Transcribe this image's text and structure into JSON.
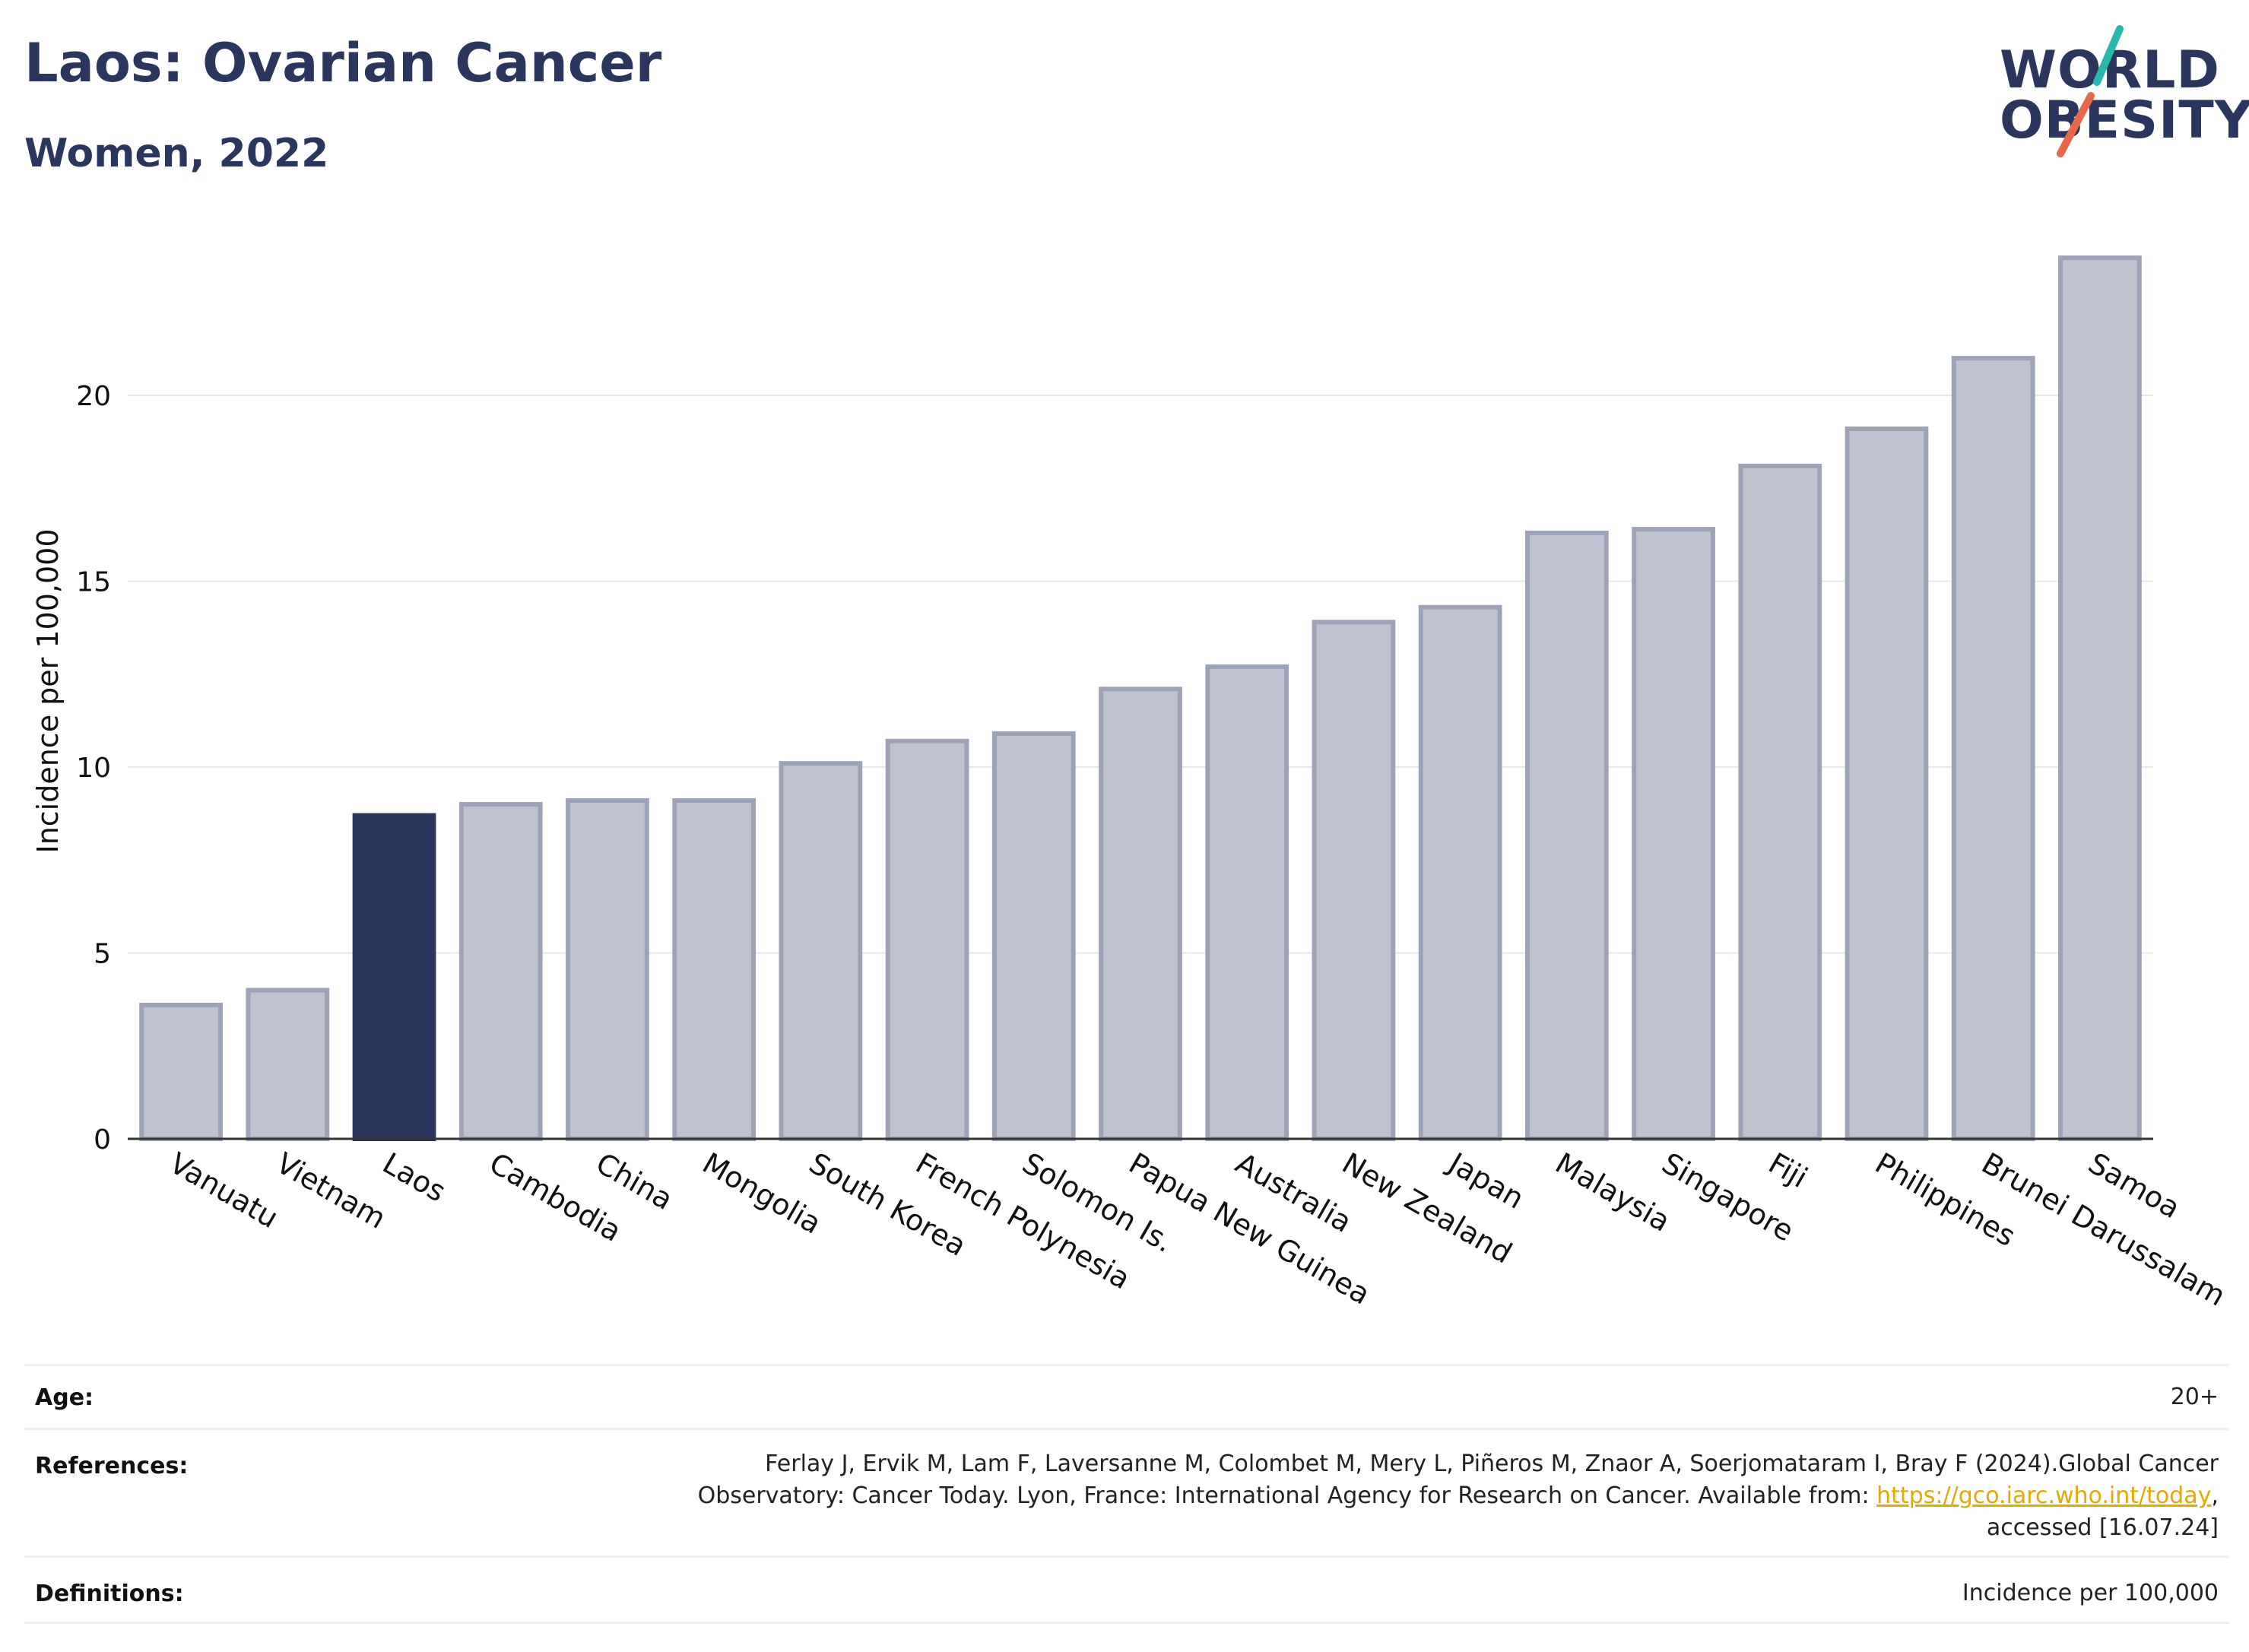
{
  "header": {
    "title": "Laos: Ovarian Cancer",
    "subtitle": "Women, 2022"
  },
  "logo": {
    "line1": "WORLD",
    "line2": "OBESITY",
    "slash_colors": [
      "#2ab7ac",
      "#e8684a"
    ]
  },
  "chart_data": {
    "type": "bar",
    "ylabel": "Incidence per 100,000",
    "ylim": [
      0,
      24.5
    ],
    "yticks": [
      0,
      5,
      10,
      15,
      20
    ],
    "grid": true,
    "highlight": "Laos",
    "colors": {
      "bar": "#bfc2cf",
      "bar_edge": "#9ea3b8",
      "highlight": "#2b365e"
    },
    "categories": [
      "Vanuatu",
      "Vietnam",
      "Laos",
      "Cambodia",
      "China",
      "Mongolia",
      "South Korea",
      "French Polynesia",
      "Solomon Is.",
      "Papua New Guinea",
      "Australia",
      "New Zealand",
      "Japan",
      "Malaysia",
      "Singapore",
      "Fiji",
      "Philippines",
      "Brunei Darussalam",
      "Samoa"
    ],
    "values": [
      3.6,
      4.0,
      8.7,
      9.0,
      9.1,
      9.1,
      10.1,
      10.7,
      10.9,
      12.1,
      12.7,
      13.9,
      14.3,
      16.3,
      16.4,
      18.1,
      19.1,
      21.0,
      23.7
    ]
  },
  "footer": {
    "age_label": "Age:",
    "age_value": "20+",
    "references_label": "References:",
    "references_line1": "Ferlay J, Ervik M, Lam F, Laversanne M, Colombet M, Mery L, Piñeros M, Znaor A, Soerjomataram I, Bray F (2024).Global Cancer",
    "references_line2_pre": "Observatory: Cancer Today. Lyon, France: International Agency for Research on Cancer. Available from: ",
    "references_link": "https://gco.iarc.who.int/today",
    "references_line2_post": ",",
    "references_line3": "accessed [16.07.24]",
    "definitions_label": "Definitions:",
    "definitions_value": "Incidence per 100,000"
  }
}
